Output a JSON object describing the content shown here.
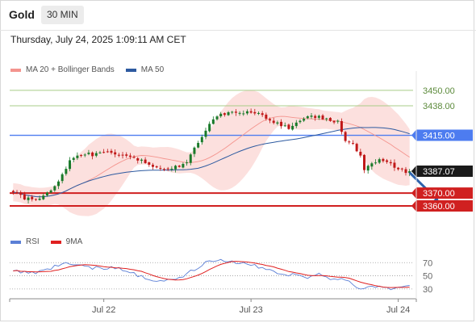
{
  "header": {
    "title": "Gold",
    "timeframe": "30 MIN"
  },
  "datetime": "Thursday, July 24, 2025 1:09:11 AM CET",
  "legend_main": [
    {
      "label": "MA 20 + Bollinger Bands",
      "color": "#f4948e"
    },
    {
      "label": "MA 50",
      "color": "#2d5aa0"
    }
  ],
  "legend_rsi": [
    {
      "label": "RSI",
      "color": "#5b7fd6"
    },
    {
      "label": "9MA",
      "color": "#e02020"
    }
  ],
  "colors": {
    "green_level": "#a8cc88",
    "blue_level": "#4d7cf0",
    "red_level": "#d02020",
    "bullish": "#1a7a2a",
    "bearish": "#c01818",
    "band_fill": "#fbd6d3",
    "arrow": "#2e63ad",
    "price_box": "#1a1a1a"
  },
  "chart_data": [
    {
      "type": "candlestick",
      "title": "Gold",
      "ylim": [
        3343,
        3460
      ],
      "x_labels": [
        {
          "label": "Jul 22",
          "index": 24
        },
        {
          "label": "Jul 23",
          "index": 63
        },
        {
          "label": "Jul 24",
          "index": 102
        }
      ],
      "levels": [
        {
          "label": "3450.00",
          "value": 3450.0,
          "kind": "green"
        },
        {
          "label": "3438.00",
          "value": 3438.0,
          "kind": "green"
        },
        {
          "label": "3415.00",
          "value": 3415.0,
          "kind": "blue"
        },
        {
          "label": "3387.07",
          "value": 3387.07,
          "kind": "current"
        },
        {
          "label": "3370.00",
          "value": 3370.0,
          "kind": "red"
        },
        {
          "label": "3360.00",
          "value": 3360.0,
          "kind": "red"
        }
      ],
      "arrow": {
        "from_index": 105,
        "from_value": 3386,
        "to_index": 113,
        "to_value": 3361
      },
      "close_anchors": [
        [
          0,
          3370
        ],
        [
          3,
          3366
        ],
        [
          7,
          3366
        ],
        [
          10,
          3371
        ],
        [
          13,
          3384
        ],
        [
          15,
          3396
        ],
        [
          17,
          3400
        ],
        [
          21,
          3400
        ],
        [
          25,
          3401
        ],
        [
          29,
          3401
        ],
        [
          33,
          3396
        ],
        [
          37,
          3390
        ],
        [
          39,
          3388
        ],
        [
          43,
          3390
        ],
        [
          46,
          3394
        ],
        [
          48,
          3404
        ],
        [
          51,
          3418
        ],
        [
          53,
          3428
        ],
        [
          57,
          3433
        ],
        [
          61,
          3433
        ],
        [
          64,
          3433
        ],
        [
          67,
          3428
        ],
        [
          70,
          3424
        ],
        [
          73,
          3420
        ],
        [
          76,
          3426
        ],
        [
          79,
          3431
        ],
        [
          82,
          3428
        ],
        [
          86,
          3425
        ],
        [
          88,
          3410
        ],
        [
          90,
          3408
        ],
        [
          92,
          3399
        ],
        [
          93,
          3389
        ],
        [
          95,
          3393
        ],
        [
          97,
          3396
        ],
        [
          100,
          3392
        ],
        [
          102,
          3390
        ],
        [
          104,
          3387
        ]
      ]
    },
    {
      "type": "line",
      "ylim": [
        20,
        90
      ],
      "yticks": [
        {
          "label": "70",
          "value": 70
        },
        {
          "label": "50",
          "value": 50
        },
        {
          "label": "30",
          "value": 30
        }
      ],
      "rsi_anchors": [
        [
          0,
          57
        ],
        [
          3,
          56
        ],
        [
          6,
          53
        ],
        [
          9,
          60
        ],
        [
          12,
          66
        ],
        [
          15,
          70
        ],
        [
          18,
          66
        ],
        [
          21,
          62
        ],
        [
          24,
          61
        ],
        [
          27,
          63
        ],
        [
          30,
          56
        ],
        [
          33,
          51
        ],
        [
          36,
          45
        ],
        [
          39,
          43
        ],
        [
          42,
          44
        ],
        [
          45,
          50
        ],
        [
          48,
          60
        ],
        [
          51,
          70
        ],
        [
          54,
          73
        ],
        [
          57,
          72
        ],
        [
          60,
          69
        ],
        [
          63,
          68
        ],
        [
          66,
          62
        ],
        [
          69,
          57
        ],
        [
          72,
          50
        ],
        [
          75,
          52
        ],
        [
          78,
          48
        ],
        [
          81,
          54
        ],
        [
          84,
          46
        ],
        [
          87,
          44
        ],
        [
          90,
          38
        ],
        [
          92,
          30
        ],
        [
          94,
          33
        ],
        [
          97,
          34
        ],
        [
          100,
          31
        ],
        [
          104,
          33
        ]
      ]
    }
  ]
}
